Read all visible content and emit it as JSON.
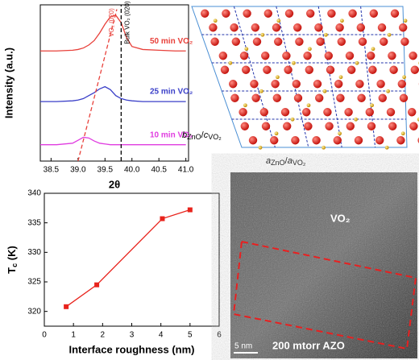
{
  "chart_data": [
    {
      "type": "line",
      "xlabel": "2θ",
      "ylabel": "Intensity (a.u.)",
      "x": [
        38.3,
        38.6,
        38.9,
        39.0,
        39.1,
        39.2,
        39.3,
        39.4,
        39.5,
        39.6,
        39.7,
        39.8,
        39.9,
        40.0,
        40.2,
        40.5,
        40.8,
        41.0
      ],
      "series": [
        {
          "name": "50 min VO₂",
          "color": "#e8403a",
          "values": [
            7.4,
            7.4,
            7.45,
            7.5,
            7.6,
            7.8,
            8.1,
            8.6,
            9.2,
            9.7,
            9.8,
            9.3,
            8.3,
            7.7,
            7.5,
            7.45,
            7.4,
            7.4
          ]
        },
        {
          "name": "25 min VO₂",
          "color": "#3a3fc8",
          "values": [
            4.0,
            4.0,
            4.05,
            4.1,
            4.2,
            4.4,
            4.6,
            4.85,
            5.0,
            4.8,
            4.4,
            4.2,
            4.1,
            4.05,
            4.0,
            4.0,
            4.0,
            4.0
          ]
        },
        {
          "name": "10 min VO₂",
          "color": "#e03ce0",
          "values": [
            1.1,
            1.1,
            1.2,
            1.4,
            1.6,
            1.55,
            1.35,
            1.2,
            1.15,
            1.1,
            1.1,
            1.1,
            1.1,
            1.1,
            1.1,
            1.1,
            1.1,
            1.1
          ]
        }
      ],
      "xlim": [
        38.3,
        41.05
      ],
      "ylim": [
        0,
        10.5
      ],
      "xticks": [
        38.5,
        {
          "value": 39.0,
          "label": "39.0"
        },
        39.5,
        {
          "value": 40.0,
          "label": "40.0"
        },
        40.5,
        {
          "value": 41.0,
          "label": "41.0"
        }
      ],
      "annotations": [
        {
          "text": "VO₂ (020)",
          "color": "#e8403a",
          "line_x": [
            39.0,
            39.72
          ],
          "line_y": [
            0,
            10.2
          ]
        },
        {
          "text": "Bulk VO₂ (020)",
          "color": "#000000",
          "line_x": [
            39.8,
            39.8
          ],
          "line_y": [
            0,
            10.5
          ]
        }
      ]
    },
    {
      "type": "line",
      "xlabel": "Interface roughness (nm)",
      "ylabel": [
        "T",
        "c",
        " (K)"
      ],
      "x": [
        0.75,
        1.8,
        4.05,
        5.0
      ],
      "series": [
        {
          "color": "#e8231c",
          "values": [
            320.8,
            324.5,
            335.7,
            337.2
          ]
        }
      ],
      "xlim": [
        0,
        6
      ],
      "ylim": [
        317.5,
        340
      ],
      "xticks": [
        0,
        1,
        2,
        3,
        4,
        5,
        6
      ],
      "yticks": [
        320,
        325,
        330,
        335,
        340
      ]
    }
  ],
  "diagram": {
    "b_label": [
      "b",
      "ZnO",
      "/",
      "c",
      "VO₂"
    ],
    "a_label": [
      "a",
      "ZnO",
      "/",
      "a",
      "VO₂"
    ]
  },
  "micrograph": {
    "phase_top": "VO₂",
    "phase_bottom": "200 mtorr AZO",
    "scale": "5 nm"
  }
}
